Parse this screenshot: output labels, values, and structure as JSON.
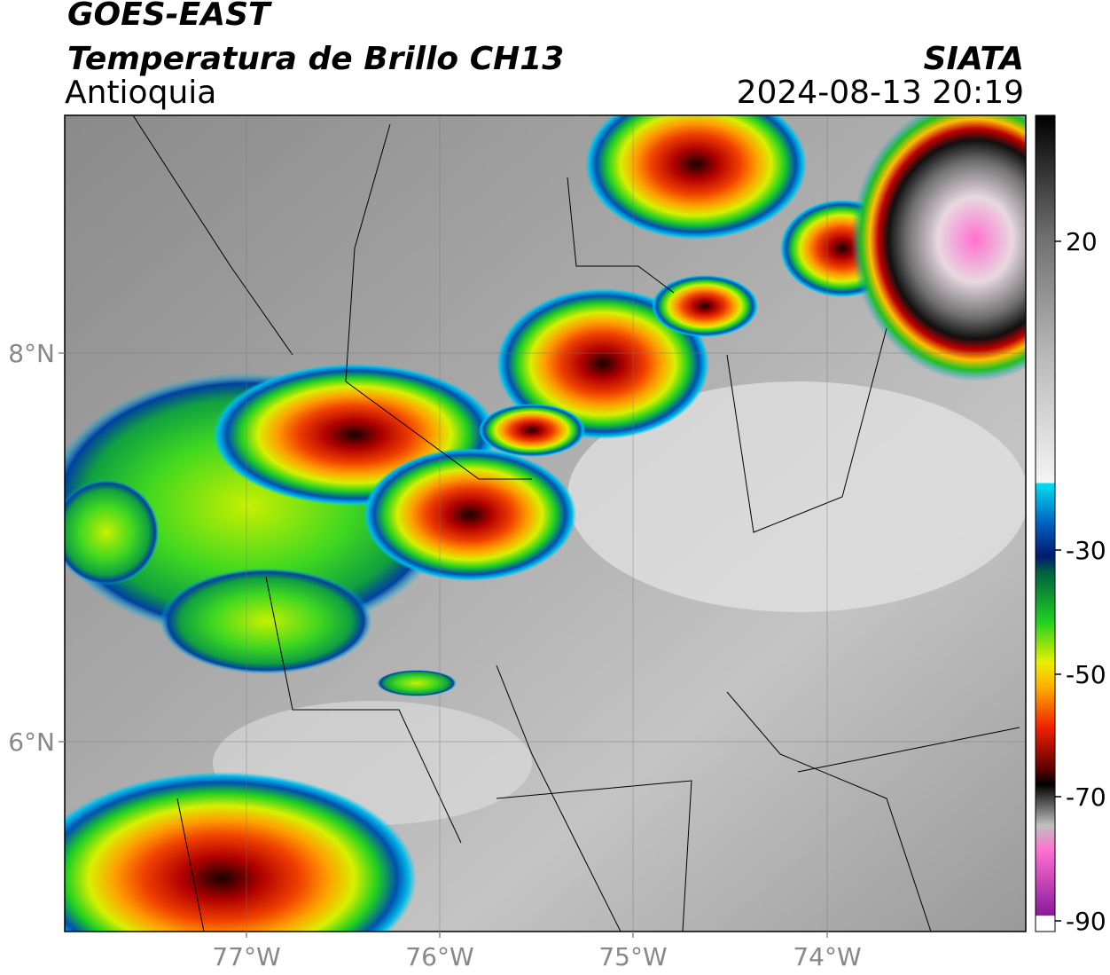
{
  "header": {
    "title": "GOES-EAST",
    "subtitle": "Temperatura de Brillo CH13",
    "region": "Antioquia",
    "source": "SIATA",
    "datetime": "2024-08-13 20:19"
  },
  "map": {
    "lat_labels": [
      "8°N",
      "6°N"
    ],
    "lon_labels": [
      "77°W",
      "76°W",
      "75°W",
      "74°W"
    ]
  },
  "colorbar": {
    "tick_labels": [
      "20",
      "-30",
      "-50",
      "-70",
      "-90"
    ]
  }
}
